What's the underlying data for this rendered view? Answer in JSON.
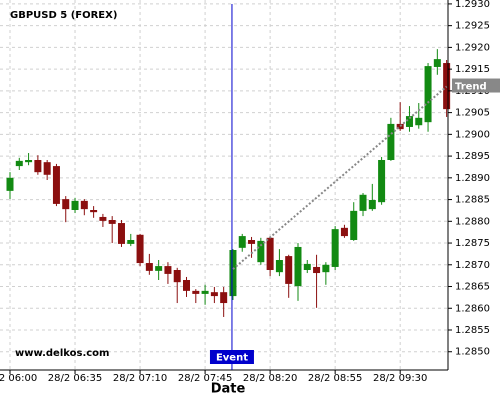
{
  "chart_data": {
    "type": "candlestick",
    "title": "GBPUSD 5 (FOREX)",
    "watermark": "www.delkos.com",
    "x_label": "Date",
    "categories": [
      "28/2 06:00",
      null,
      null,
      null,
      null,
      null,
      null,
      "28/2 06:35",
      null,
      null,
      null,
      null,
      null,
      null,
      "28/2 07:10",
      null,
      null,
      null,
      null,
      null,
      null,
      "28/2 07:45",
      null,
      null,
      null,
      null,
      null,
      null,
      "28/2 08:20",
      null,
      null,
      null,
      null,
      null,
      null,
      "28/2 08:55",
      null,
      null,
      null,
      null,
      null,
      null,
      "28/2 09:30",
      null,
      null,
      null,
      null,
      null
    ],
    "open": [
      1.2887,
      1.28927,
      1.28936,
      1.28941,
      1.28936,
      1.28927,
      1.28851,
      1.28826,
      1.28847,
      1.28826,
      1.2881,
      1.28803,
      1.28796,
      1.28748,
      1.28769,
      1.28704,
      1.28686,
      1.28697,
      1.28688,
      1.28665,
      1.2864,
      1.28633,
      1.28637,
      1.28637,
      1.28628,
      1.28739,
      1.28757,
      1.28706,
      1.28762,
      1.28683,
      1.2872,
      1.28651,
      1.28688,
      1.28695,
      1.28683,
      1.28695,
      1.28785,
      1.28757,
      1.28824,
      1.28828,
      1.28844,
      1.28941,
      1.29024,
      1.29017,
      1.29021,
      1.29028,
      1.29155,
      1.29164
    ],
    "high": [
      1.28913,
      1.28946,
      1.28957,
      1.28952,
      1.28941,
      1.28932,
      1.28858,
      1.28854,
      1.28851,
      1.28835,
      1.28817,
      1.28812,
      1.28803,
      1.28771,
      1.28771,
      1.28725,
      1.28711,
      1.28706,
      1.28693,
      1.28672,
      1.28644,
      1.28654,
      1.28649,
      1.28649,
      1.28736,
      1.28771,
      1.28764,
      1.28762,
      1.28764,
      1.28736,
      1.28723,
      1.2875,
      1.28711,
      1.28723,
      1.28706,
      1.28789,
      1.28792,
      1.28844,
      1.28865,
      1.28886,
      1.28948,
      1.29038,
      1.29074,
      1.29065,
      1.29072,
      1.29164,
      1.29196,
      1.29171
    ],
    "low": [
      1.28851,
      1.28918,
      1.28929,
      1.28907,
      1.28895,
      1.28835,
      1.28798,
      1.28819,
      1.28814,
      1.28808,
      1.28787,
      1.2875,
      1.28741,
      1.28743,
      1.28697,
      1.28677,
      1.28665,
      1.28656,
      1.28612,
      1.28626,
      1.28612,
      1.28608,
      1.28612,
      1.2858,
      1.28619,
      1.2873,
      1.28716,
      1.287,
      1.28674,
      1.28674,
      1.28624,
      1.28617,
      1.28681,
      1.28601,
      1.28654,
      1.28688,
      1.28762,
      1.28755,
      1.28812,
      1.28824,
      1.28838,
      1.28939,
      1.29008,
      1.29006,
      1.29013,
      1.29006,
      1.29137,
      1.2904
    ],
    "close": [
      1.289,
      1.28939,
      1.28941,
      1.28913,
      1.28907,
      1.2884,
      1.28828,
      1.28847,
      1.28828,
      1.28821,
      1.28801,
      1.28794,
      1.28748,
      1.28757,
      1.28704,
      1.28686,
      1.28697,
      1.28679,
      1.2866,
      1.2864,
      1.28633,
      1.2864,
      1.28628,
      1.28612,
      1.28734,
      1.28766,
      1.28748,
      1.28755,
      1.28688,
      1.28711,
      1.28656,
      1.28741,
      1.28702,
      1.28681,
      1.287,
      1.28782,
      1.28766,
      1.28824,
      1.28861,
      1.28849,
      1.28941,
      1.29024,
      1.29012,
      1.29042,
      1.29038,
      1.29157,
      1.29173,
      1.29058
    ],
    "up_color": "#128a12",
    "down_color": "#8b0f0f",
    "ylim": [
      1.28458,
      1.29309
    ],
    "yticks": [
      {
        "value": 1.285,
        "label": "1.2850"
      },
      1.2855,
      {
        "value": 1.286,
        "label": "1.2860"
      },
      1.2865,
      {
        "value": 1.287,
        "label": "1.2870"
      },
      1.2875,
      {
        "value": 1.288,
        "label": "1.2880"
      },
      1.2885,
      {
        "value": 1.289,
        "label": "1.2890"
      },
      1.2895,
      {
        "value": 1.29,
        "label": "1.2900"
      },
      1.2905,
      {
        "value": 1.291,
        "label": "1.2910"
      },
      1.2915,
      {
        "value": 1.292,
        "label": "1.2920"
      },
      1.2925,
      {
        "value": 1.293,
        "label": "1.2930"
      }
    ],
    "grid": true,
    "event": {
      "label": "Event",
      "index": 24,
      "color": "#0000cc"
    },
    "trend": {
      "label": "Trend",
      "start_index": 24,
      "start": 1.2869,
      "end_index": 47,
      "end": 1.2911,
      "color": "#888888"
    }
  }
}
